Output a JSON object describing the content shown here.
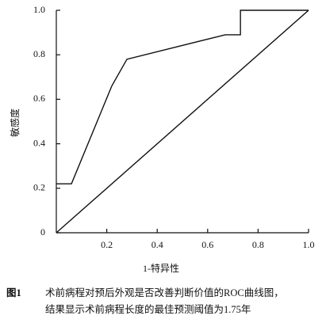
{
  "chart_data": {
    "type": "line",
    "xlabel": "1-特异性",
    "ylabel": "敏感度",
    "xlim": [
      0,
      1
    ],
    "ylim": [
      0,
      1
    ],
    "xticks": [
      0.2,
      0.4,
      0.6,
      0.8,
      {
        "value": 1,
        "label": "1.0"
      }
    ],
    "yticks": [
      0,
      0.2,
      0.4,
      0.6,
      0.8,
      {
        "value": 1,
        "label": "1.0"
      }
    ],
    "series": [
      {
        "color": "#111111",
        "x": [
          0,
          0.06,
          0.22,
          0.28,
          0.67,
          0.73,
          0.73,
          1
        ],
        "values": [
          0.22,
          0.22,
          0.66,
          0.78,
          0.89,
          0.89,
          1,
          1
        ]
      },
      {
        "color": "#111111",
        "x": [
          0,
          1
        ],
        "values": [
          0,
          1
        ]
      }
    ],
    "caption": {
      "label": "图1",
      "lines": [
        "术前病程对预后外观是否改善判断价值的ROC曲线图，",
        "结果显示术前病程长度的最佳预测阈值为1.75年"
      ]
    }
  }
}
